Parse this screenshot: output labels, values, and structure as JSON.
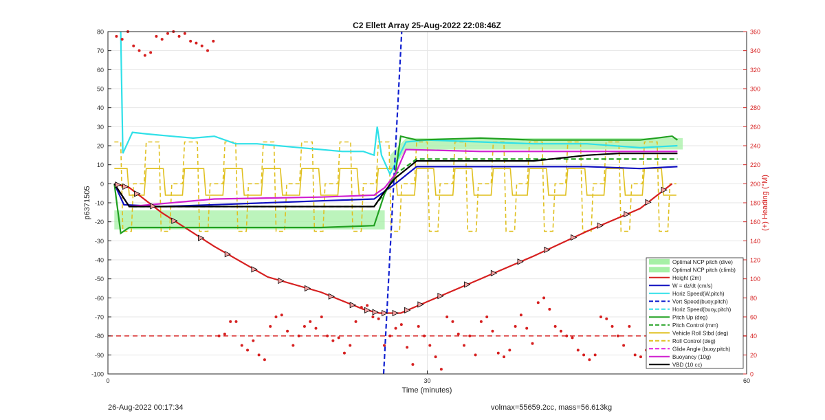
{
  "chart_data": {
    "type": "line",
    "title": "C2 Ellett Array 25-Aug-2022 22:08:46Z",
    "xlabel": "Time (minutes)",
    "ylabel": "p6371505",
    "ylabel_right": "(+) Heading (°M)",
    "xlim": [
      0,
      60
    ],
    "ylim": [
      -100,
      80
    ],
    "ylim_right": [
      0,
      360
    ],
    "x_ticks": [
      "0",
      "30",
      "60"
    ],
    "y_ticks": [
      "-100",
      "-90",
      "-80",
      "-70",
      "-60",
      "-50",
      "-40",
      "-30",
      "-20",
      "-10",
      "0",
      "10",
      "20",
      "30",
      "40",
      "50",
      "60",
      "70",
      "80"
    ],
    "y_right_ticks": [
      "0",
      "20",
      "40",
      "60",
      "80",
      "100",
      "120",
      "140",
      "160",
      "180",
      "200",
      "220",
      "240",
      "260",
      "280",
      "300",
      "320",
      "340",
      "360"
    ],
    "grid": true,
    "legend_position": "bottom-right",
    "legend": [
      {
        "label": "Optimal NCP pitch (dive)",
        "color": "#a6f0a6",
        "style": "patch"
      },
      {
        "label": "Optimal NCP pitch (climb)",
        "color": "#a6f0a6",
        "style": "patch"
      },
      {
        "label": "Height (2m)",
        "color": "#d62020",
        "style": "solid"
      },
      {
        "label": "W = dz/dt (cm/s)",
        "color": "#1010c0",
        "style": "solid"
      },
      {
        "label": "Horiz Speed(W,pitch)",
        "color": "#30e0e8",
        "style": "solid"
      },
      {
        "label": "Vert Speed(buoy,pitch)",
        "color": "#1020d0",
        "style": "dashed"
      },
      {
        "label": "Horiz Speed(buoy,pitch)",
        "color": "#30e0e8",
        "style": "dashed"
      },
      {
        "label": "Pitch Up (deg)",
        "color": "#20a020",
        "style": "solid"
      },
      {
        "label": "Pitch Control (mm)",
        "color": "#20a020",
        "style": "dashed"
      },
      {
        "label": "Vehicle Roll Stbd (deg)",
        "color": "#e0c020",
        "style": "solid"
      },
      {
        "label": "Roll Control (deg)",
        "color": "#e0c020",
        "style": "dashed"
      },
      {
        "label": "Glide Angle (buoy,pitch)",
        "color": "#e020e0",
        "style": "dashed"
      },
      {
        "label": "Buoyancy (10g)",
        "color": "#d020d0",
        "style": "solid"
      },
      {
        "label": "VBD (10 cc)",
        "color": "#000000",
        "style": "solid"
      }
    ],
    "series": [
      {
        "name": "Height (2m)",
        "x": [
          0.6,
          2,
          5,
          10,
          15,
          20,
          24,
          25.5,
          27.5,
          30,
          35,
          40,
          45,
          50,
          53
        ],
        "values": [
          0,
          -2,
          -15,
          -33,
          -49,
          -57,
          -66,
          -68,
          -68,
          -62,
          -50,
          -38,
          -25,
          -13,
          0
        ]
      },
      {
        "name": "W = dz/dt (cm/s)",
        "x": [
          0.6,
          1.5,
          5,
          10,
          15,
          20,
          25,
          25.5,
          27,
          29,
          35,
          40,
          45,
          50,
          53.5
        ],
        "values": [
          0,
          -11,
          -12,
          -11,
          -10,
          -9,
          -8,
          -6,
          0,
          9,
          9,
          9,
          9,
          8,
          9
        ]
      },
      {
        "name": "Horiz Speed(W,pitch)",
        "x": [
          1.2,
          1.4,
          2.3,
          4,
          6,
          8,
          10,
          12,
          14,
          16,
          18,
          20,
          22,
          24,
          25,
          25.3,
          25.7,
          26.5,
          28,
          30,
          35,
          40,
          45,
          50,
          53.5
        ],
        "values": [
          80,
          16,
          27,
          26,
          25,
          24,
          25,
          21,
          21,
          20,
          19,
          18,
          17,
          17,
          15,
          30,
          15,
          5,
          22,
          23,
          22,
          21,
          21,
          19,
          20
        ]
      },
      {
        "name": "Vert Speed(buoy,pitch)",
        "x": [
          25.9,
          27.6
        ],
        "values": [
          -100,
          80
        ]
      },
      {
        "name": "Pitch Up (deg)",
        "x": [
          0.6,
          1.2,
          2,
          5,
          10,
          15,
          20,
          25,
          26,
          27,
          27.5,
          29,
          35,
          40,
          45,
          50,
          53,
          53.5
        ],
        "values": [
          0,
          -26,
          -23,
          -23,
          -23,
          -23,
          -23,
          -22,
          -5,
          5,
          25,
          23,
          24,
          23,
          23,
          23,
          25,
          23
        ]
      },
      {
        "name": "Pitch Control (mm)",
        "x": [
          0.6,
          2,
          10,
          20,
          25,
          26,
          27,
          29,
          35,
          40,
          45,
          50,
          53.5
        ],
        "values": [
          0,
          -12,
          -12,
          -12,
          -12,
          -5,
          5,
          13,
          13,
          13,
          13,
          13,
          13
        ]
      },
      {
        "name": "Buoyancy (10g)",
        "x": [
          0.6,
          2,
          10,
          20,
          25,
          26,
          27,
          28,
          35,
          40,
          45,
          50,
          53.5
        ],
        "values": [
          0,
          -12,
          -8,
          -7,
          -6,
          -2,
          5,
          18,
          17,
          17,
          17,
          17,
          17
        ]
      },
      {
        "name": "VBD (10 cc)",
        "x": [
          0.6,
          2,
          10,
          20,
          25,
          26,
          27,
          29,
          35,
          40,
          45,
          48,
          53.5
        ],
        "values": [
          0,
          -12,
          -12,
          -12,
          -12,
          -4,
          3,
          12,
          12,
          12,
          15,
          16,
          16
        ]
      }
    ],
    "heading_points_deg": [
      355,
      352,
      360,
      345,
      340,
      335,
      338,
      355,
      352,
      358,
      360,
      355,
      358,
      350,
      348,
      345,
      340,
      350,
      40,
      42,
      55,
      55,
      30,
      25,
      35,
      20,
      15,
      50,
      60,
      62,
      45,
      30,
      40,
      50,
      55,
      48,
      60,
      40,
      35,
      38,
      22,
      30,
      55,
      70,
      72,
      60,
      58,
      30,
      40,
      48,
      52,
      28,
      10,
      50,
      40,
      30,
      18,
      5,
      60,
      55,
      42,
      30,
      40,
      20,
      55,
      60,
      45,
      22,
      18,
      25,
      50,
      62,
      48,
      32,
      75,
      80,
      68,
      50,
      45,
      40,
      38,
      25,
      20,
      15,
      20,
      60,
      58,
      50,
      40,
      30,
      50,
      20,
      18,
      25,
      10,
      30,
      45,
      55,
      70
    ],
    "roll_control_reference": -80,
    "heading_reference_deg": 40
  },
  "footer": {
    "timestamp": "26-Aug-2022 00:17:34",
    "summary": "volmax=55659.2cc, mass=56.613kg"
  }
}
